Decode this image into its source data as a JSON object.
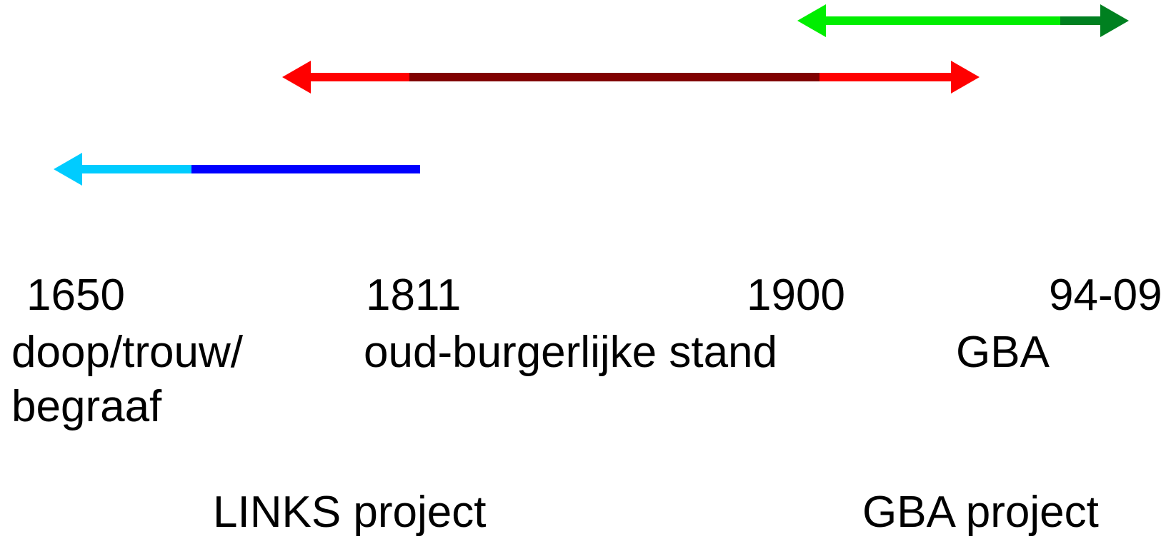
{
  "periods": [
    {
      "year": "1650",
      "label_lines": [
        "doop/trouw/",
        "begraaf"
      ]
    },
    {
      "year": "1811",
      "label_lines": [
        "oud-burgerlijke stand"
      ]
    },
    {
      "year": "1900",
      "label_lines": []
    },
    {
      "year": "94-09",
      "label_lines": [
        "GBA"
      ]
    }
  ],
  "projects": [
    "LINKS project",
    "GBA project"
  ]
}
